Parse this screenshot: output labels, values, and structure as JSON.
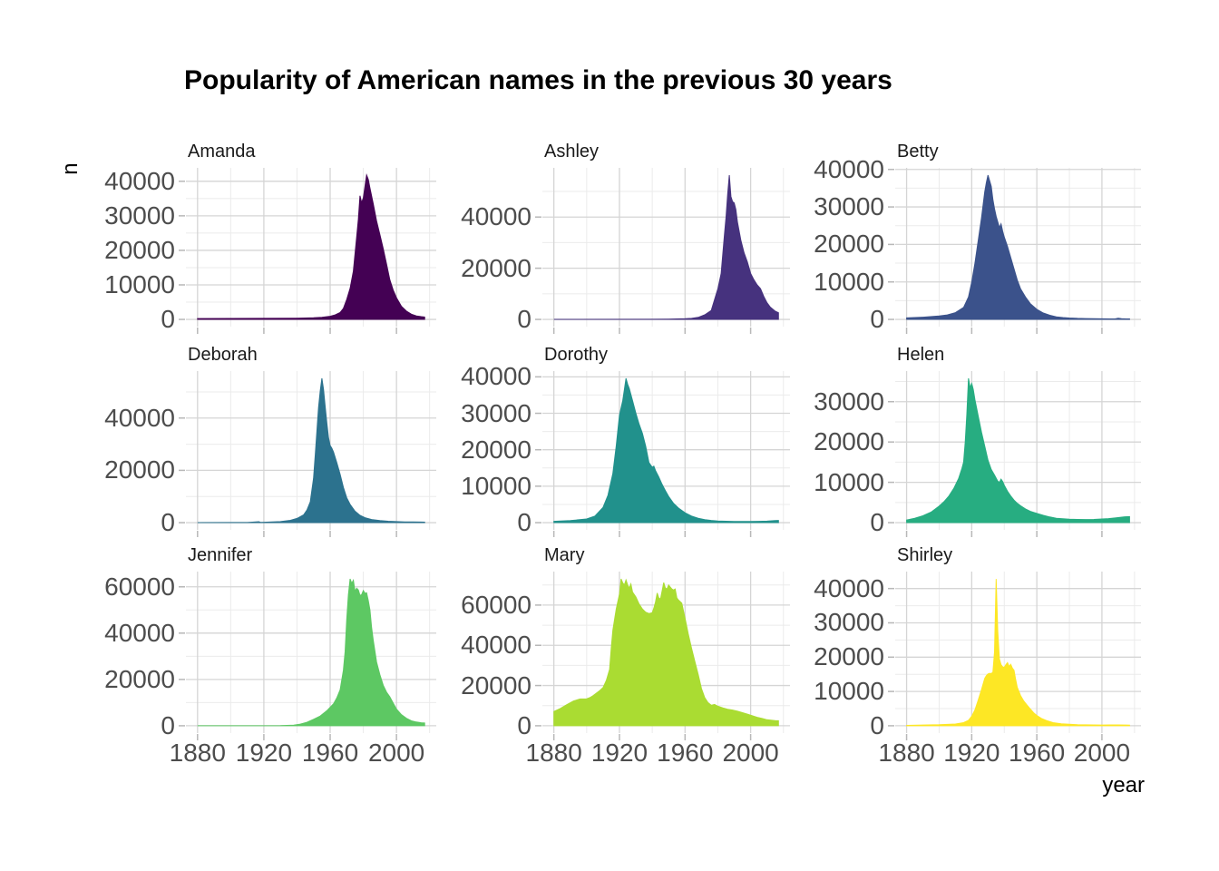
{
  "title": "Popularity of American names in the previous 30 years",
  "chart_data": {
    "type": "area",
    "title": "Popularity of American names in the previous 30 years",
    "xlabel": "year",
    "ylabel": "n",
    "legend": "none",
    "grid": {
      "major_color": "#d5d5d5",
      "minor_color": "#ebebeb",
      "tick_mark_color": "#b8b8b8"
    },
    "tick_label_color": "#4d4d4d",
    "x_domain": [
      1873,
      2024
    ],
    "x_ticks": [
      1880,
      1920,
      1960,
      2000
    ],
    "x_minor_ticks": [
      1900,
      1940,
      1980,
      2020
    ],
    "facets": [
      {
        "name": "Amanda",
        "color": "#440154",
        "y_ticks": [
          0,
          10000,
          20000,
          30000,
          40000
        ],
        "y_max": 41800,
        "show_x_labels": false,
        "x": [
          1880,
          1900,
          1920,
          1940,
          1950,
          1955,
          1960,
          1963,
          1966,
          1968,
          1970,
          1972,
          1974,
          1976,
          1977,
          1978,
          1979,
          1980,
          1981,
          1982,
          1983,
          1984,
          1986,
          1988,
          1990,
          1992,
          1994,
          1996,
          1998,
          2000,
          2003,
          2006,
          2009,
          2012,
          2015,
          2017
        ],
        "y": [
          240,
          280,
          300,
          350,
          450,
          600,
          900,
          1300,
          2000,
          3200,
          5800,
          9000,
          14000,
          24000,
          29000,
          35800,
          33800,
          35200,
          38500,
          41800,
          40500,
          38000,
          33500,
          28500,
          24500,
          20500,
          16000,
          11500,
          8500,
          6300,
          3800,
          2400,
          1500,
          1000,
          800,
          700
        ]
      },
      {
        "name": "Ashley",
        "color": "#46327e",
        "y_ticks": [
          0,
          20000,
          40000
        ],
        "y_max": 56400,
        "show_x_labels": false,
        "x": [
          1880,
          1940,
          1950,
          1960,
          1964,
          1968,
          1972,
          1976,
          1980,
          1982,
          1984,
          1985,
          1986,
          1987,
          1988,
          1989,
          1990,
          1991,
          1992,
          1994,
          1996,
          1998,
          2000,
          2002,
          2004,
          2006,
          2008,
          2010,
          2012,
          2015,
          2017
        ],
        "y": [
          30,
          60,
          120,
          250,
          400,
          800,
          1800,
          3500,
          12000,
          18000,
          33000,
          40000,
          49000,
          56400,
          48000,
          46000,
          45500,
          43000,
          38000,
          31000,
          26000,
          22500,
          18000,
          15500,
          13500,
          12000,
          9000,
          6500,
          4800,
          3200,
          2600
        ]
      },
      {
        "name": "Betty",
        "color": "#3b528b",
        "y_ticks": [
          0,
          10000,
          20000,
          30000,
          40000
        ],
        "y_max": 38500,
        "show_x_labels": false,
        "x": [
          1880,
          1890,
          1900,
          1905,
          1910,
          1915,
          1918,
          1920,
          1922,
          1924,
          1926,
          1928,
          1929,
          1930,
          1931,
          1932,
          1933,
          1934,
          1935,
          1936,
          1937,
          1938,
          1939,
          1940,
          1942,
          1944,
          1946,
          1948,
          1950,
          1953,
          1956,
          1960,
          1964,
          1968,
          1972,
          1976,
          1980,
          1985,
          1990,
          1995,
          2000,
          2005,
          2008,
          2010,
          2012,
          2015,
          2017
        ],
        "y": [
          400,
          600,
          900,
          1200,
          1800,
          3200,
          6000,
          10000,
          15000,
          21000,
          27000,
          34000,
          36500,
          38500,
          37000,
          35500,
          32000,
          29500,
          27500,
          26000,
          24500,
          25500,
          23500,
          22000,
          19500,
          16500,
          13500,
          10500,
          8200,
          6000,
          4200,
          2700,
          1700,
          1100,
          700,
          500,
          380,
          280,
          220,
          180,
          150,
          130,
          140,
          320,
          180,
          140,
          120
        ]
      },
      {
        "name": "Deborah",
        "color": "#2c728e",
        "y_ticks": [
          0,
          20000,
          40000
        ],
        "y_max": 55200,
        "show_x_labels": false,
        "x": [
          1880,
          1910,
          1917,
          1918,
          1920,
          1930,
          1936,
          1940,
          1944,
          1946,
          1948,
          1950,
          1951,
          1952,
          1953,
          1954,
          1955,
          1956,
          1957,
          1958,
          1959,
          1960,
          1961,
          1962,
          1964,
          1966,
          1968,
          1970,
          1972,
          1975,
          1978,
          1981,
          1985,
          1990,
          1995,
          2000,
          2005,
          2010,
          2015,
          2017
        ],
        "y": [
          20,
          60,
          350,
          120,
          150,
          400,
          900,
          1600,
          3000,
          4800,
          8000,
          17000,
          26000,
          35000,
          44000,
          50500,
          55200,
          51000,
          44500,
          38000,
          32500,
          29500,
          28500,
          27000,
          23000,
          18500,
          13500,
          9500,
          7000,
          4400,
          2800,
          1900,
          1200,
          800,
          550,
          400,
          300,
          250,
          220,
          200
        ]
      },
      {
        "name": "Dorothy",
        "color": "#21918c",
        "y_ticks": [
          0,
          10000,
          20000,
          30000,
          40000
        ],
        "y_max": 39600,
        "show_x_labels": false,
        "x": [
          1880,
          1890,
          1900,
          1905,
          1910,
          1913,
          1916,
          1918,
          1920,
          1921,
          1922,
          1923,
          1924,
          1925,
          1926,
          1928,
          1930,
          1932,
          1934,
          1936,
          1938,
          1940,
          1941,
          1942,
          1944,
          1946,
          1948,
          1950,
          1953,
          1956,
          1960,
          1964,
          1968,
          1972,
          1976,
          1980,
          1985,
          1990,
          1995,
          2000,
          2005,
          2010,
          2013,
          2015,
          2017
        ],
        "y": [
          350,
          550,
          1000,
          1800,
          4200,
          7500,
          13500,
          21000,
          29500,
          31500,
          33500,
          36500,
          39600,
          38000,
          36800,
          33500,
          30000,
          27000,
          24500,
          21000,
          16500,
          15200,
          15500,
          14300,
          12500,
          10500,
          8800,
          7200,
          5300,
          4000,
          2700,
          1800,
          1200,
          800,
          600,
          450,
          380,
          330,
          300,
          300,
          350,
          420,
          500,
          560,
          600
        ]
      },
      {
        "name": "Helen",
        "color": "#27ad81",
        "y_ticks": [
          0,
          10000,
          20000,
          30000
        ],
        "y_max": 35800,
        "show_x_labels": false,
        "x": [
          1880,
          1885,
          1890,
          1895,
          1900,
          1903,
          1906,
          1909,
          1912,
          1914,
          1915,
          1916,
          1917,
          1918,
          1919,
          1920,
          1921,
          1922,
          1924,
          1926,
          1928,
          1930,
          1932,
          1934,
          1936,
          1937,
          1938,
          1939,
          1940,
          1942,
          1944,
          1946,
          1948,
          1950,
          1953,
          1956,
          1960,
          1964,
          1968,
          1972,
          1976,
          1980,
          1985,
          1990,
          1995,
          2000,
          2004,
          2008,
          2011,
          2014,
          2017
        ],
        "y": [
          650,
          1100,
          1700,
          2600,
          4100,
          5200,
          6600,
          8500,
          11000,
          13500,
          15000,
          20000,
          27000,
          35800,
          33500,
          34500,
          33000,
          30500,
          26500,
          22500,
          19000,
          15500,
          13200,
          11800,
          10300,
          10000,
          10800,
          10200,
          9300,
          7800,
          6600,
          5600,
          4800,
          4200,
          3400,
          2800,
          2300,
          1800,
          1400,
          1100,
          950,
          850,
          800,
          780,
          800,
          900,
          1000,
          1150,
          1300,
          1450,
          1500
        ]
      },
      {
        "name": "Jennifer",
        "color": "#5dc863",
        "y_ticks": [
          0,
          20000,
          40000,
          60000
        ],
        "y_max": 63400,
        "show_x_labels": true,
        "x": [
          1880,
          1930,
          1938,
          1942,
          1946,
          1950,
          1954,
          1958,
          1962,
          1964,
          1966,
          1968,
          1969,
          1970,
          1971,
          1972,
          1973,
          1974,
          1975,
          1976,
          1977,
          1978,
          1979,
          1980,
          1981,
          1982,
          1983,
          1984,
          1985,
          1986,
          1988,
          1990,
          1992,
          1994,
          1996,
          1998,
          2000,
          2003,
          2006,
          2009,
          2012,
          2015,
          2017
        ],
        "y": [
          10,
          80,
          250,
          700,
          1500,
          2800,
          4200,
          6500,
          9500,
          12000,
          15500,
          24000,
          32000,
          46000,
          56500,
          63400,
          61500,
          62800,
          58200,
          59400,
          58600,
          56300,
          56600,
          58400,
          57200,
          57400,
          54000,
          50000,
          42500,
          37000,
          27500,
          22000,
          17500,
          14500,
          12500,
          9800,
          7200,
          4800,
          3200,
          2100,
          1600,
          1300,
          1200
        ]
      },
      {
        "name": "Mary",
        "color": "#aadc32",
        "y_ticks": [
          0,
          20000,
          40000,
          60000
        ],
        "y_max": 73000,
        "show_x_labels": true,
        "x": [
          1880,
          1884,
          1888,
          1892,
          1896,
          1900,
          1902,
          1904,
          1908,
          1910,
          1912,
          1914,
          1915,
          1916,
          1918,
          1920,
          1921,
          1922,
          1923,
          1924,
          1925,
          1926,
          1927,
          1928,
          1930,
          1932,
          1934,
          1936,
          1938,
          1940,
          1941,
          1942,
          1943,
          1944,
          1945,
          1946,
          1947,
          1948,
          1949,
          1950,
          1951,
          1952,
          1953,
          1954,
          1955,
          1956,
          1958,
          1960,
          1962,
          1964,
          1966,
          1968,
          1970,
          1972,
          1974,
          1976,
          1978,
          1980,
          1983,
          1986,
          1989,
          1992,
          1995,
          1998,
          2001,
          2004,
          2007,
          2010,
          2013,
          2015,
          2017
        ],
        "y": [
          7100,
          8600,
          10500,
          12300,
          13300,
          13400,
          14000,
          15000,
          17500,
          19000,
          22500,
          28000,
          38500,
          47500,
          58000,
          65500,
          73000,
          71000,
          70000,
          72500,
          70000,
          68500,
          70500,
          66500,
          64000,
          60500,
          58000,
          56500,
          55800,
          56200,
          58500,
          61500,
          66000,
          63500,
          63000,
          67000,
          71200,
          68500,
          68000,
          70000,
          69000,
          68000,
          67500,
          68000,
          63500,
          62500,
          61000,
          53500,
          45500,
          38500,
          32000,
          25500,
          18500,
          14000,
          11500,
          10200,
          10600,
          9700,
          8900,
          8200,
          7800,
          7200,
          6500,
          5800,
          5000,
          4200,
          3600,
          3000,
          2700,
          2550,
          2500
        ]
      },
      {
        "name": "Shirley",
        "color": "#fde725",
        "y_ticks": [
          0,
          10000,
          20000,
          30000,
          40000
        ],
        "y_max": 42800,
        "show_x_labels": true,
        "x": [
          1880,
          1900,
          1910,
          1915,
          1918,
          1920,
          1922,
          1924,
          1926,
          1928,
          1929,
          1930,
          1931,
          1932,
          1933,
          1934,
          1935,
          1936,
          1937,
          1938,
          1939,
          1940,
          1941,
          1942,
          1943,
          1944,
          1945,
          1946,
          1947,
          1948,
          1950,
          1952,
          1954,
          1956,
          1958,
          1960,
          1963,
          1966,
          1970,
          1975,
          1980,
          1985,
          1990,
          1995,
          2000,
          2005,
          2010,
          2015,
          2017
        ],
        "y": [
          120,
          300,
          500,
          900,
          1600,
          2800,
          4600,
          7500,
          10500,
          13800,
          14600,
          15100,
          15300,
          15200,
          15600,
          21500,
          42800,
          27500,
          19500,
          17800,
          17200,
          17000,
          17800,
          18400,
          17300,
          17900,
          16800,
          16200,
          13500,
          11200,
          8800,
          7200,
          6000,
          4900,
          3800,
          3000,
          2100,
          1500,
          900,
          550,
          420,
          320,
          260,
          230,
          210,
          230,
          250,
          220,
          200
        ]
      }
    ]
  }
}
